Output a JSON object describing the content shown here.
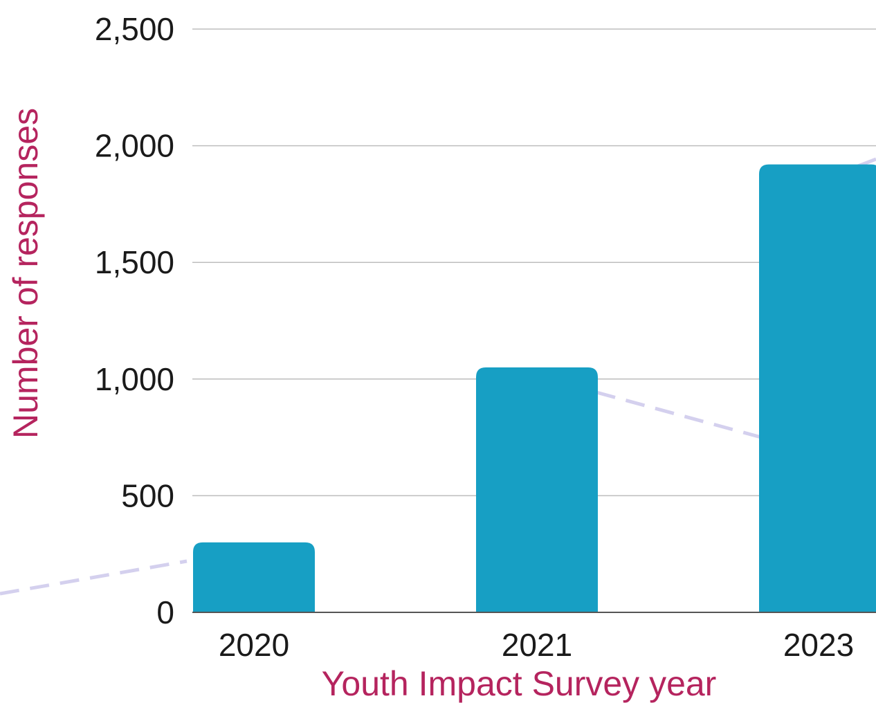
{
  "chart_data": {
    "type": "bar",
    "title": "",
    "xlabel": "Youth Impact Survey year",
    "ylabel": "Number of responses",
    "categories": [
      "2020",
      "2021",
      "2023"
    ],
    "values": [
      300,
      1050,
      1920
    ],
    "ylim": [
      0,
      2500
    ],
    "yticks": [
      0,
      500,
      1000,
      1500,
      2000,
      2500
    ],
    "ytick_labels": [
      "0",
      "500",
      "1,000",
      "1,500",
      "2,000",
      "2,500"
    ],
    "grid": true,
    "legend": "none",
    "colors": {
      "bar": "#179fc4",
      "axis_title": "#b5245e",
      "grid": "#bdbdbd",
      "baseline": "#555555",
      "decoration": "#d4d0ee"
    }
  }
}
